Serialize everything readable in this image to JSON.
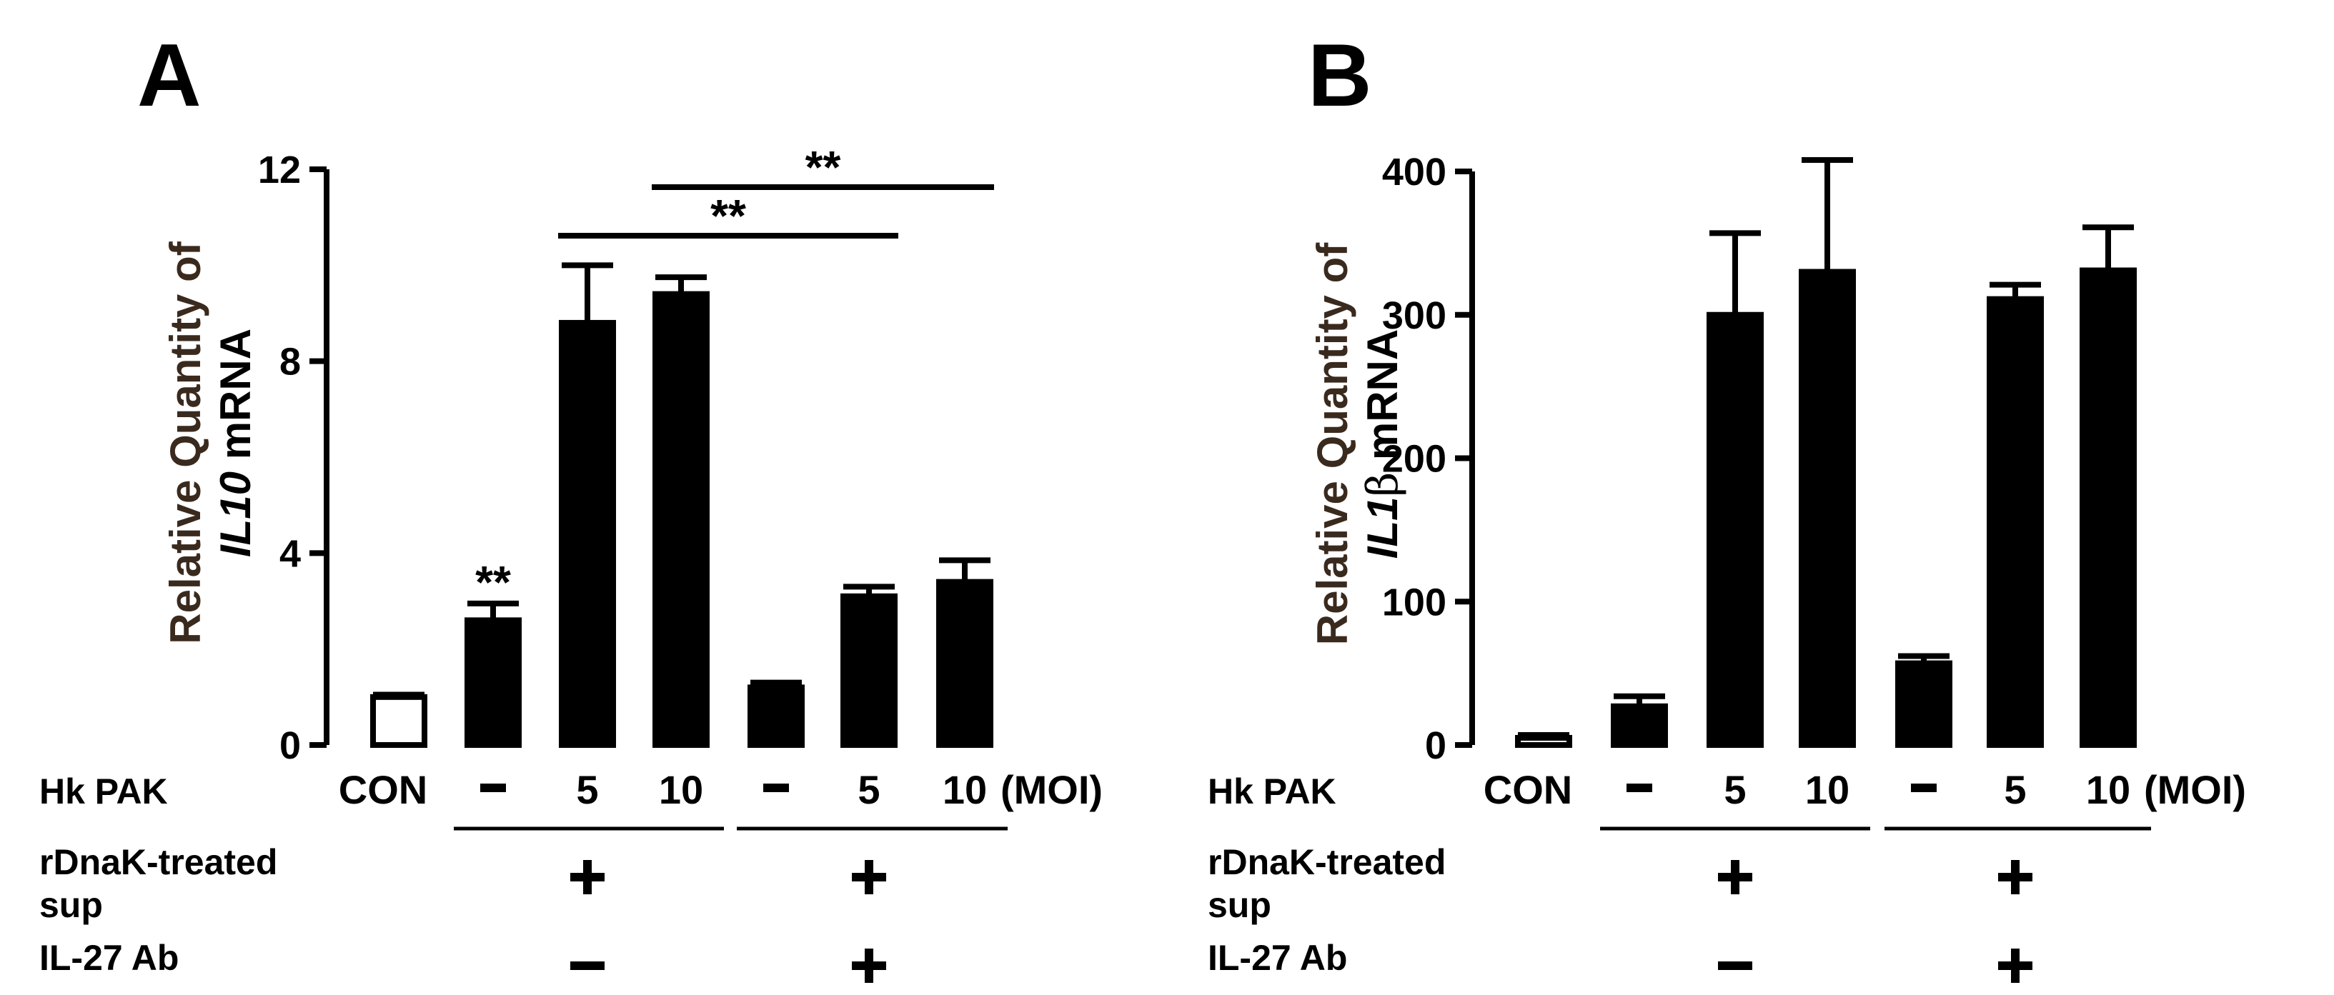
{
  "chart_data": [
    {
      "type": "bar",
      "panel": "A",
      "ylabel_line1": "Relative Quantity of",
      "ylabel_gene": "IL10",
      "ylabel_suffix": " mRNA",
      "ylim": [
        0,
        12
      ],
      "yticks": [
        "0",
        "4",
        "8",
        "12"
      ],
      "categories": [
        "CON",
        "-",
        "5",
        "10",
        "-",
        "5",
        "10"
      ],
      "moi_label": "(MOI)",
      "values": [
        1.0,
        2.6,
        8.8,
        9.4,
        1.2,
        3.1,
        3.4
      ],
      "errors": [
        0.05,
        0.35,
        1.2,
        0.35,
        0.1,
        0.2,
        0.45
      ],
      "fills": [
        "white",
        "black",
        "black",
        "black",
        "black",
        "black",
        "black"
      ],
      "annotations": [
        {
          "text": "**",
          "over": 1
        },
        {
          "text": "**",
          "from": 2,
          "to": 5
        },
        {
          "text": "**",
          "from": 3,
          "to": 6
        }
      ]
    },
    {
      "type": "bar",
      "panel": "B",
      "ylabel_line1": "Relative Quantity of",
      "ylabel_gene": "IL1",
      "ylabel_beta": "β",
      "ylabel_suffix": " mRNA",
      "ylim": [
        0,
        400
      ],
      "yticks": [
        "0",
        "100",
        "200",
        "300",
        "400"
      ],
      "categories": [
        "CON",
        "-",
        "5",
        "10",
        "-",
        "5",
        "10"
      ],
      "moi_label": "(MOI)",
      "values": [
        5,
        27,
        300,
        330,
        57,
        311,
        331
      ],
      "errors": [
        2,
        7,
        57,
        78,
        5,
        10,
        30
      ],
      "fills": [
        "white",
        "black",
        "black",
        "black",
        "black",
        "black",
        "black"
      ],
      "annotations": []
    }
  ],
  "conditions": {
    "hk_pak_label": "Hk PAK",
    "rdnak_line1": "rDnaK-treated",
    "rdnak_line2": "sup",
    "il27_label": "IL-27 Ab",
    "rdnak_signs": [
      "+",
      "+"
    ],
    "il27_signs": [
      "-",
      "+"
    ]
  }
}
